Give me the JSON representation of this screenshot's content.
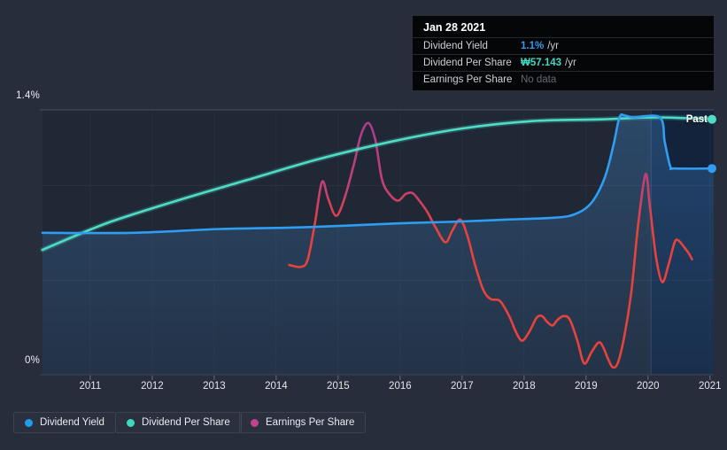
{
  "page": {
    "background": "#272d3b"
  },
  "past_label": "Past",
  "tooltip": {
    "date": "Jan 28 2021",
    "rows": [
      {
        "label": "Dividend Yield",
        "value": "1.1%",
        "unit": "/yr",
        "value_color": "#2f9cf1",
        "has_data": true
      },
      {
        "label": "Dividend Per Share",
        "value": "₩57.143",
        "unit": "/yr",
        "value_color": "#3fd9c3",
        "has_data": true
      },
      {
        "label": "Earnings Per Share",
        "value": "No data",
        "unit": "",
        "value_color": "#646a72",
        "has_data": false
      }
    ]
  },
  "legend": [
    {
      "label": "Dividend Yield",
      "color": "#1f9cf0"
    },
    {
      "label": "Dividend Per Share",
      "color": "#41d8bf"
    },
    {
      "label": "Earnings Per Share",
      "color": "#c0438b"
    }
  ],
  "chart_data": {
    "type": "line",
    "title": "Dividend history to Jan 28 2021",
    "xlim": [
      2010.23,
      2021.06
    ],
    "ylim": [
      0,
      1.4
    ],
    "y_top_label": "1.4%",
    "y_bottom_label": "0%",
    "y_gridlines_pct": [
      0.5,
      1.0
    ],
    "x_ticks": [
      2011,
      2012,
      2013,
      2014,
      2015,
      2016,
      2017,
      2018,
      2019,
      2020,
      2021
    ],
    "x_tick_labels": [
      "2011",
      "2012",
      "2013",
      "2014",
      "2015",
      "2016",
      "2017",
      "2018",
      "2019",
      "2020",
      "2021"
    ],
    "highlight_band_from_year": 2020.05,
    "legend_position": "bottom",
    "grid": true,
    "colors": {
      "yield_line": "#2f9df2",
      "dps_line": "#4fdcc6",
      "eps_gradient_top": "#a93a93",
      "eps_gradient_mid": "#c33f75",
      "eps_gradient_low": "#e7423c",
      "area_fill": "rgba(70,150,225,0.30)",
      "band_fill": "#14233c",
      "plot_bg": "#202836"
    },
    "series": [
      {
        "name": "Dividend Yield",
        "unit": "% /yr",
        "end_dot": true,
        "area_fill": true,
        "points": [
          [
            2010.23,
            0.75
          ],
          [
            2011.7,
            0.75
          ],
          [
            2013.1,
            0.77
          ],
          [
            2014.5,
            0.78
          ],
          [
            2016.0,
            0.8
          ],
          [
            2017.0,
            0.81
          ],
          [
            2017.7,
            0.82
          ],
          [
            2018.5,
            0.83
          ],
          [
            2018.83,
            0.85
          ],
          [
            2019.09,
            0.91
          ],
          [
            2019.3,
            1.04
          ],
          [
            2019.44,
            1.21
          ],
          [
            2019.54,
            1.36
          ],
          [
            2019.63,
            1.37
          ],
          [
            2019.76,
            1.36
          ],
          [
            2020.19,
            1.36
          ],
          [
            2020.27,
            1.23
          ],
          [
            2020.36,
            1.1
          ],
          [
            2020.43,
            1.09
          ],
          [
            2021.06,
            1.09
          ]
        ]
      },
      {
        "name": "Dividend Per Share",
        "unit": "relative scale (current ₩57.143 /yr)",
        "end_dot": true,
        "area_fill": false,
        "points": [
          [
            2010.23,
            0.66
          ],
          [
            2011.26,
            0.8
          ],
          [
            2012.4,
            0.92
          ],
          [
            2013.54,
            1.03
          ],
          [
            2014.69,
            1.14
          ],
          [
            2015.83,
            1.23
          ],
          [
            2016.97,
            1.3
          ],
          [
            2018.11,
            1.34
          ],
          [
            2019.26,
            1.35
          ],
          [
            2020.11,
            1.36
          ],
          [
            2021.06,
            1.35
          ]
        ]
      },
      {
        "name": "Earnings Per Share",
        "unit": "relative scale",
        "end_dot": false,
        "area_fill": false,
        "points": [
          [
            2014.21,
            0.58
          ],
          [
            2014.4,
            0.57
          ],
          [
            2014.51,
            0.61
          ],
          [
            2014.63,
            0.81
          ],
          [
            2014.74,
            1.02
          ],
          [
            2014.84,
            0.93
          ],
          [
            2014.97,
            0.84
          ],
          [
            2015.11,
            0.94
          ],
          [
            2015.26,
            1.12
          ],
          [
            2015.37,
            1.27
          ],
          [
            2015.49,
            1.33
          ],
          [
            2015.6,
            1.24
          ],
          [
            2015.71,
            1.03
          ],
          [
            2015.84,
            0.95
          ],
          [
            2015.97,
            0.92
          ],
          [
            2016.09,
            0.955
          ],
          [
            2016.2,
            0.96
          ],
          [
            2016.31,
            0.92
          ],
          [
            2016.44,
            0.86
          ],
          [
            2016.57,
            0.78
          ],
          [
            2016.73,
            0.7
          ],
          [
            2016.84,
            0.76
          ],
          [
            2016.97,
            0.82
          ],
          [
            2017.09,
            0.73
          ],
          [
            2017.21,
            0.58
          ],
          [
            2017.34,
            0.45
          ],
          [
            2017.46,
            0.4
          ],
          [
            2017.61,
            0.39
          ],
          [
            2017.76,
            0.31
          ],
          [
            2017.87,
            0.225
          ],
          [
            2017.97,
            0.18
          ],
          [
            2018.09,
            0.23
          ],
          [
            2018.2,
            0.3
          ],
          [
            2018.29,
            0.31
          ],
          [
            2018.37,
            0.28
          ],
          [
            2018.46,
            0.26
          ],
          [
            2018.54,
            0.29
          ],
          [
            2018.64,
            0.31
          ],
          [
            2018.74,
            0.29
          ],
          [
            2018.86,
            0.18
          ],
          [
            2018.97,
            0.06
          ],
          [
            2019.09,
            0.12
          ],
          [
            2019.2,
            0.17
          ],
          [
            2019.27,
            0.15
          ],
          [
            2019.36,
            0.08
          ],
          [
            2019.43,
            0.04
          ],
          [
            2019.51,
            0.06
          ],
          [
            2019.61,
            0.19
          ],
          [
            2019.73,
            0.435
          ],
          [
            2019.84,
            0.79
          ],
          [
            2019.96,
            1.06
          ],
          [
            2020.03,
            0.89
          ],
          [
            2020.13,
            0.62
          ],
          [
            2020.23,
            0.49
          ],
          [
            2020.33,
            0.58
          ],
          [
            2020.43,
            0.7
          ],
          [
            2020.49,
            0.71
          ],
          [
            2020.57,
            0.68
          ],
          [
            2020.66,
            0.64
          ],
          [
            2020.71,
            0.61
          ]
        ]
      }
    ]
  }
}
